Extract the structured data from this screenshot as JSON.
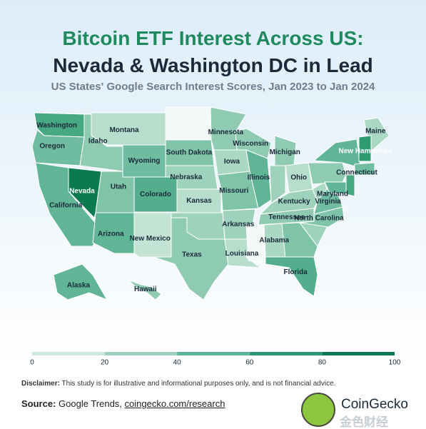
{
  "header": {
    "title_line1": "Bitcoin ETF Interest Across US:",
    "title_line2": "Nevada & Washington DC in Lead",
    "subtitle": "US States' Google Search Interest Scores, Jan 2023 to Jan 2024"
  },
  "map": {
    "type": "choropleth",
    "regions": [
      {
        "name": "Washington",
        "value": 70
      },
      {
        "name": "Oregon",
        "value": 55
      },
      {
        "name": "California",
        "value": 60
      },
      {
        "name": "Nevada",
        "value": 100
      },
      {
        "name": "Idaho",
        "value": 45
      },
      {
        "name": "Montana",
        "value": 30
      },
      {
        "name": "Wyoming",
        "value": 55
      },
      {
        "name": "Utah",
        "value": 50
      },
      {
        "name": "Colorado",
        "value": 65
      },
      {
        "name": "Arizona",
        "value": 60
      },
      {
        "name": "New Mexico",
        "value": 25
      },
      {
        "name": null,
        "value": 5
      },
      {
        "name": "South Dakota",
        "value": 50
      },
      {
        "name": "Nebraska",
        "value": 40
      },
      {
        "name": "Kansas",
        "value": 30
      },
      {
        "name": null,
        "value": 40
      },
      {
        "name": "Texas",
        "value": 45
      },
      {
        "name": "Minnesota",
        "value": 45
      },
      {
        "name": "Iowa",
        "value": 35
      },
      {
        "name": "Missouri",
        "value": 50
      },
      {
        "name": "Arkansas",
        "value": 40
      },
      {
        "name": "Louisiana",
        "value": 30
      },
      {
        "name": "Wisconsin",
        "value": 45
      },
      {
        "name": "Illinois",
        "value": 60
      },
      {
        "name": "Michigan",
        "value": 45
      },
      {
        "name": null,
        "value": 40
      },
      {
        "name": "Ohio",
        "value": 30
      },
      {
        "name": "Kentucky",
        "value": 40
      },
      {
        "name": "Tennessee",
        "value": 45
      },
      {
        "name": null,
        "value": 5
      },
      {
        "name": "Alabama",
        "value": 35
      },
      {
        "name": null,
        "value": 50
      },
      {
        "name": "Florida",
        "value": 65
      },
      {
        "name": null,
        "value": 40
      },
      {
        "name": "North Carolina",
        "value": 50
      },
      {
        "name": "Virginia",
        "value": 55
      },
      {
        "name": null,
        "value": 35
      },
      {
        "name": null,
        "value": 45
      },
      {
        "name": null,
        "value": 60
      },
      {
        "name": "Maryland",
        "value": 60
      },
      {
        "name": null,
        "value": 70
      },
      {
        "name": "Connecticut",
        "value": 55
      },
      {
        "name": "Maine",
        "value": 35
      },
      {
        "name": "New Hampshire",
        "value": 80
      },
      {
        "name": "Alaska",
        "value": 60
      },
      {
        "name": "Hawaii",
        "value": 45
      }
    ],
    "legend": {
      "ticks": [
        0,
        20,
        40,
        60,
        80,
        100
      ],
      "colors": [
        "#ffffff",
        "#cfe8dd",
        "#9fd2bc",
        "#5fb596",
        "#2e9a72",
        "#0b7a50"
      ]
    }
  },
  "footer": {
    "disclaimer_label": "Disclaimer:",
    "disclaimer": "This study is for illustrative and informational purposes only, and is not financial advice.",
    "source_label": "Source:",
    "source": "Google Trends,",
    "link": "coingecko.com/research",
    "logo": "CoinGecko",
    "watermark": "金色财经"
  }
}
